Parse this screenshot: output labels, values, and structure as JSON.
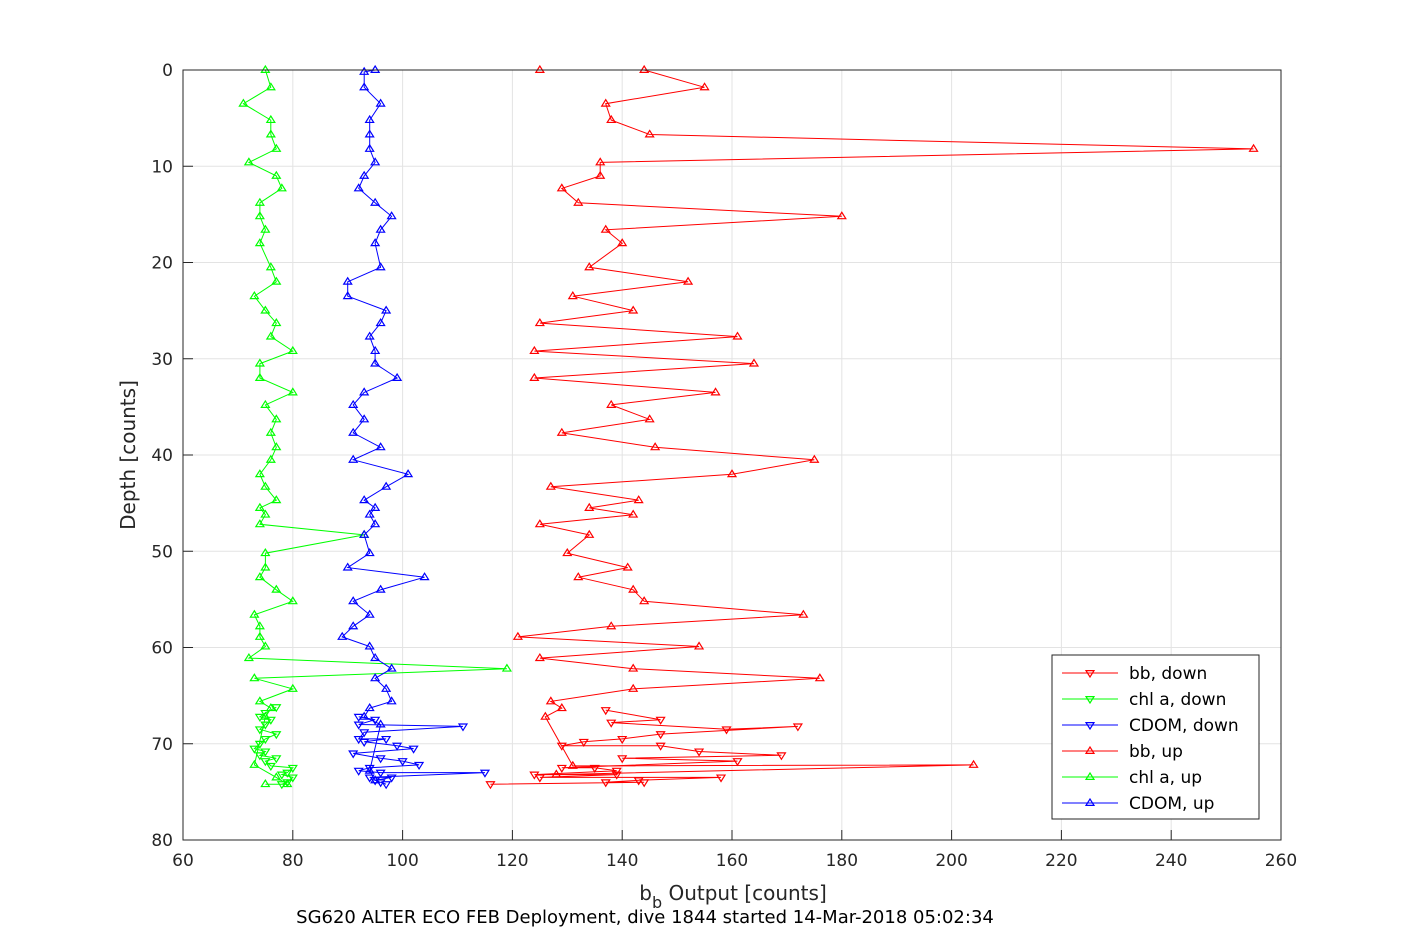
{
  "chart_data": {
    "type": "line",
    "title": "SG620 ALTER ECO FEB Deployment, dive 1844 started 14-Mar-2018 05:02:34",
    "xlabel_main": "b",
    "xlabel_sub": "b",
    "xlabel_rest": " Output [counts]",
    "ylabel": "Depth [counts]",
    "xlim": [
      60,
      260
    ],
    "ylim": [
      0,
      80
    ],
    "y_reversed": true,
    "grid": true,
    "xticks": [
      60,
      80,
      100,
      120,
      140,
      160,
      180,
      200,
      220,
      240,
      260
    ],
    "yticks": [
      0,
      10,
      20,
      30,
      40,
      50,
      60,
      70,
      80
    ],
    "legend_position": "bottom-right",
    "colors": {
      "red": "#ff0000",
      "green": "#00ff00",
      "blue": "#0000ff"
    },
    "series": [
      {
        "name": "bb, down",
        "color": "#ff0000",
        "marker": "triangle-down",
        "points": [
          [
            137,
            66.5
          ],
          [
            147,
            67.5
          ],
          [
            138,
            67.8
          ],
          [
            159,
            68.5
          ],
          [
            172,
            68.2
          ],
          [
            147,
            69
          ],
          [
            140,
            69.5
          ],
          [
            133,
            69.8
          ],
          [
            129,
            70.2
          ],
          [
            147,
            70.2
          ],
          [
            154,
            70.8
          ],
          [
            169,
            71.2
          ],
          [
            140,
            71.5
          ],
          [
            161,
            71.8
          ],
          [
            129,
            72.5
          ],
          [
            135,
            72.5
          ],
          [
            139,
            72.8
          ],
          [
            124,
            73.2
          ],
          [
            139,
            73.2
          ],
          [
            125,
            73.5
          ],
          [
            158,
            73.5
          ],
          [
            143,
            73.8
          ],
          [
            137,
            74
          ],
          [
            144,
            74
          ],
          [
            116,
            74.2
          ]
        ]
      },
      {
        "name": "chl a, down",
        "color": "#00ff00",
        "marker": "triangle-down",
        "points": [
          [
            77,
            66.2
          ],
          [
            75,
            66.8
          ],
          [
            74,
            67.2
          ],
          [
            76,
            67.5
          ],
          [
            75,
            68
          ],
          [
            74,
            68.5
          ],
          [
            77,
            69
          ],
          [
            75,
            69.5
          ],
          [
            74,
            70
          ],
          [
            73,
            70.5
          ],
          [
            75,
            70.8
          ],
          [
            74,
            71.2
          ],
          [
            77,
            71.5
          ],
          [
            75,
            71.8
          ],
          [
            76,
            72.3
          ],
          [
            80,
            72.5
          ],
          [
            79,
            73
          ],
          [
            78,
            73.2
          ],
          [
            80,
            73.5
          ],
          [
            79,
            74
          ],
          [
            78,
            74.2
          ]
        ]
      },
      {
        "name": "CDOM, down",
        "color": "#0000ff",
        "marker": "triangle-down",
        "points": [
          [
            92,
            67.2
          ],
          [
            95,
            67.5
          ],
          [
            92,
            68
          ],
          [
            111,
            68.2
          ],
          [
            93,
            68.8
          ],
          [
            92,
            69.5
          ],
          [
            97,
            69.5
          ],
          [
            93,
            69.8
          ],
          [
            99,
            70.2
          ],
          [
            102,
            70.5
          ],
          [
            91,
            71
          ],
          [
            96,
            71.5
          ],
          [
            100,
            71.8
          ],
          [
            103,
            72.2
          ],
          [
            94,
            72.5
          ],
          [
            92,
            72.8
          ],
          [
            96,
            73
          ],
          [
            115,
            73
          ],
          [
            94,
            73.5
          ],
          [
            98,
            73.5
          ],
          [
            95,
            73.8
          ],
          [
            96,
            74
          ],
          [
            97,
            74.2
          ]
        ]
      },
      {
        "name": "bb, up",
        "color": "#ff0000",
        "marker": "triangle-up",
        "points": [
          [
            125,
            0
          ],
          [
            144,
            0
          ],
          [
            155,
            1.8
          ],
          [
            137,
            3.5
          ],
          [
            138,
            5.2
          ],
          [
            145,
            6.7
          ],
          [
            255,
            8.2
          ],
          [
            136,
            9.6
          ],
          [
            136,
            11
          ],
          [
            129,
            12.3
          ],
          [
            132,
            13.8
          ],
          [
            180,
            15.2
          ],
          [
            137,
            16.6
          ],
          [
            140,
            18
          ],
          [
            134,
            20.5
          ],
          [
            152,
            22
          ],
          [
            131,
            23.5
          ],
          [
            142,
            25
          ],
          [
            125,
            26.3
          ],
          [
            161,
            27.7
          ],
          [
            124,
            29.2
          ],
          [
            164,
            30.5
          ],
          [
            124,
            32
          ],
          [
            157,
            33.5
          ],
          [
            138,
            34.8
          ],
          [
            145,
            36.3
          ],
          [
            129,
            37.7
          ],
          [
            146,
            39.2
          ],
          [
            175,
            40.5
          ],
          [
            160,
            42
          ],
          [
            127,
            43.3
          ],
          [
            143,
            44.7
          ],
          [
            134,
            45.5
          ],
          [
            142,
            46.2
          ],
          [
            125,
            47.2
          ],
          [
            134,
            48.3
          ],
          [
            130,
            50.2
          ],
          [
            141,
            51.7
          ],
          [
            132,
            52.7
          ],
          [
            142,
            54
          ],
          [
            144,
            55.2
          ],
          [
            173,
            56.6
          ],
          [
            138,
            57.8
          ],
          [
            121,
            58.9
          ],
          [
            154,
            59.9
          ],
          [
            125,
            61.1
          ],
          [
            142,
            62.2
          ],
          [
            176,
            63.2
          ],
          [
            142,
            64.3
          ],
          [
            127,
            65.6
          ],
          [
            129,
            66.3
          ],
          [
            126,
            67.2
          ],
          [
            131,
            72.3
          ],
          [
            204,
            72.2
          ],
          [
            128,
            73.2
          ]
        ]
      },
      {
        "name": "chl a, up",
        "color": "#00ff00",
        "marker": "triangle-up",
        "points": [
          [
            75,
            0
          ],
          [
            76,
            1.8
          ],
          [
            71,
            3.5
          ],
          [
            76,
            5.2
          ],
          [
            76,
            6.7
          ],
          [
            77,
            8.2
          ],
          [
            72,
            9.6
          ],
          [
            77,
            11
          ],
          [
            78,
            12.3
          ],
          [
            74,
            13.8
          ],
          [
            74,
            15.2
          ],
          [
            75,
            16.6
          ],
          [
            74,
            18
          ],
          [
            76,
            20.5
          ],
          [
            77,
            22
          ],
          [
            73,
            23.5
          ],
          [
            75,
            25
          ],
          [
            77,
            26.3
          ],
          [
            76,
            27.7
          ],
          [
            80,
            29.2
          ],
          [
            74,
            30.5
          ],
          [
            74,
            32
          ],
          [
            80,
            33.5
          ],
          [
            75,
            34.8
          ],
          [
            77,
            36.3
          ],
          [
            76,
            37.7
          ],
          [
            77,
            39.2
          ],
          [
            76,
            40.5
          ],
          [
            74,
            42
          ],
          [
            75,
            43.3
          ],
          [
            77,
            44.7
          ],
          [
            74,
            45.5
          ],
          [
            75,
            46.2
          ],
          [
            74,
            47.2
          ],
          [
            93,
            48.3
          ],
          [
            75,
            50.2
          ],
          [
            75,
            51.7
          ],
          [
            74,
            52.7
          ],
          [
            77,
            54
          ],
          [
            80,
            55.2
          ],
          [
            73,
            56.6
          ],
          [
            74,
            57.8
          ],
          [
            74,
            58.9
          ],
          [
            75,
            59.9
          ],
          [
            72,
            61.1
          ],
          [
            119,
            62.2
          ],
          [
            73,
            63.2
          ],
          [
            80,
            64.3
          ],
          [
            74,
            65.6
          ],
          [
            76,
            66.3
          ],
          [
            75,
            67.2
          ],
          [
            73,
            72.2
          ],
          [
            77,
            73.5
          ],
          [
            79,
            74.2
          ],
          [
            75,
            74.2
          ]
        ]
      },
      {
        "name": "CDOM, up",
        "color": "#0000ff",
        "marker": "triangle-up",
        "points": [
          [
            95,
            0
          ],
          [
            93,
            0.2
          ],
          [
            93,
            1.8
          ],
          [
            96,
            3.5
          ],
          [
            94,
            5.2
          ],
          [
            94,
            6.7
          ],
          [
            94,
            8.2
          ],
          [
            95,
            9.6
          ],
          [
            93,
            11
          ],
          [
            92,
            12.3
          ],
          [
            95,
            13.8
          ],
          [
            98,
            15.2
          ],
          [
            96,
            16.6
          ],
          [
            95,
            18
          ],
          [
            96,
            20.5
          ],
          [
            90,
            22
          ],
          [
            90,
            23.5
          ],
          [
            97,
            25
          ],
          [
            96,
            26.3
          ],
          [
            94,
            27.7
          ],
          [
            95,
            29.2
          ],
          [
            95,
            30.5
          ],
          [
            99,
            32
          ],
          [
            93,
            33.5
          ],
          [
            91,
            34.8
          ],
          [
            93,
            36.3
          ],
          [
            91,
            37.7
          ],
          [
            96,
            39.2
          ],
          [
            91,
            40.5
          ],
          [
            101,
            42
          ],
          [
            97,
            43.3
          ],
          [
            93,
            44.7
          ],
          [
            95,
            45.5
          ],
          [
            94,
            46.2
          ],
          [
            95,
            47.2
          ],
          [
            93,
            48.3
          ],
          [
            94,
            50.2
          ],
          [
            90,
            51.7
          ],
          [
            104,
            52.7
          ],
          [
            96,
            54
          ],
          [
            91,
            55.2
          ],
          [
            94,
            56.6
          ],
          [
            91,
            57.8
          ],
          [
            89,
            58.9
          ],
          [
            94,
            59.9
          ],
          [
            95,
            61.1
          ],
          [
            98,
            62.2
          ],
          [
            95,
            63.2
          ],
          [
            97,
            64.3
          ],
          [
            98,
            65.6
          ],
          [
            94,
            66.3
          ],
          [
            93,
            67.2
          ],
          [
            96,
            68
          ],
          [
            94,
            72.8
          ],
          [
            95,
            73.8
          ]
        ]
      }
    ]
  }
}
